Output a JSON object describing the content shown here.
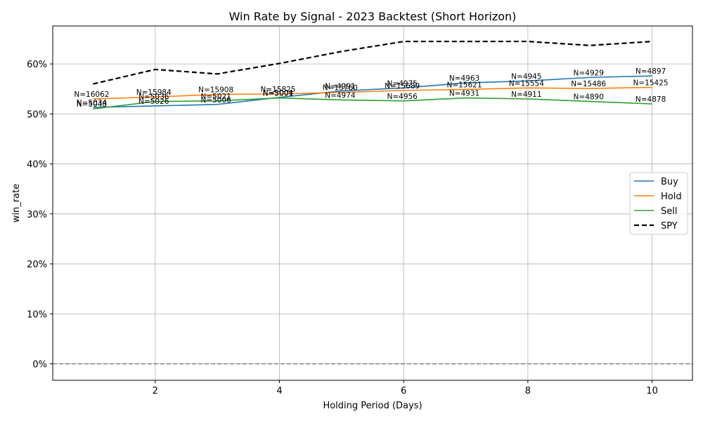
{
  "chart_data": {
    "type": "line",
    "title": "Win Rate by Signal - 2023 Backtest (Short Horizon)",
    "xlabel": "Holding Period (Days)",
    "ylabel": "win_rate",
    "x": [
      1,
      2,
      3,
      4,
      5,
      6,
      7,
      8,
      9,
      10
    ],
    "xlim": [
      0.35,
      10.65
    ],
    "ylim": [
      -0.033,
      0.676
    ],
    "x_ticks": [
      2,
      4,
      6,
      8,
      10
    ],
    "y_ticks": [
      0,
      0.1,
      0.2,
      0.3,
      0.4,
      0.5,
      0.6
    ],
    "y_tick_labels": [
      "0%",
      "10%",
      "20%",
      "30%",
      "40%",
      "50%",
      "60%"
    ],
    "grid": true,
    "reference_line": {
      "y": 0,
      "style": "dashed",
      "color": "#808080"
    },
    "legend_position": "center-right",
    "series": [
      {
        "name": "Buy",
        "color": "#1f77b4",
        "style": "solid",
        "values": [
          0.513,
          0.516,
          0.519,
          0.533,
          0.546,
          0.552,
          0.562,
          0.566,
          0.573,
          0.576
        ],
        "counts": [
          "N=5034",
          "N=5026",
          "N=5006",
          "N=5004",
          "N=4991",
          "N=4975",
          "N=4963",
          "N=4945",
          "N=4929",
          "N=4897"
        ]
      },
      {
        "name": "Hold",
        "color": "#ff7f0e",
        "style": "solid",
        "values": [
          0.53,
          0.534,
          0.539,
          0.54,
          0.543,
          0.547,
          0.549,
          0.552,
          0.551,
          0.553
        ],
        "counts": [
          "N=16062",
          "N=15984",
          "N=15908",
          "N=15825",
          "N=15760",
          "N=15689",
          "N=15621",
          "N=15554",
          "N=15486",
          "N=15425"
        ]
      },
      {
        "name": "Sell",
        "color": "#2ca02c",
        "style": "solid",
        "values": [
          0.51,
          0.525,
          0.526,
          0.532,
          0.528,
          0.526,
          0.532,
          0.53,
          0.525,
          0.52
        ],
        "counts": [
          "N=5048",
          "N=5036",
          "N=5021",
          "N=5001",
          "N=4974",
          "N=4956",
          "N=4931",
          "N=4911",
          "N=4890",
          "N=4878"
        ]
      },
      {
        "name": "SPY",
        "color": "#000000",
        "style": "dashed",
        "values": [
          0.56,
          0.589,
          0.58,
          0.601,
          0.625,
          0.645,
          0.645,
          0.645,
          0.637,
          0.645
        ]
      }
    ]
  }
}
